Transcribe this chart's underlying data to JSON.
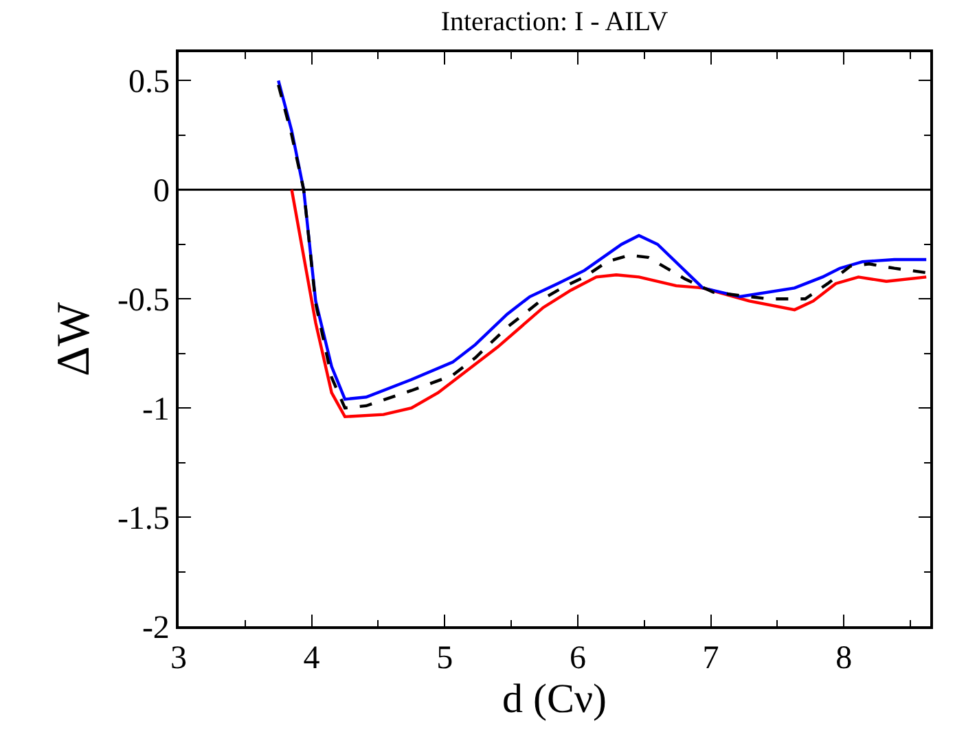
{
  "chart_data": {
    "type": "line",
    "title": "Interaction: I - AILV",
    "xlabel": "d (Cν)",
    "ylabel": "ΔW",
    "xlim": [
      3,
      8.65
    ],
    "ylim": [
      -2,
      0.63
    ],
    "xticks": [
      3,
      4,
      5,
      6,
      7,
      8
    ],
    "yticks": [
      0.5,
      0,
      -0.5,
      -1,
      -1.5,
      -2
    ],
    "grid": false,
    "ref_lines": [
      {
        "axis": "y",
        "value": 0,
        "color": "#000000"
      }
    ],
    "series": [
      {
        "color": "#ff0000",
        "line_style": "solid",
        "x": [
          3.85,
          4.03,
          4.15,
          4.25,
          4.54,
          4.75,
          4.95,
          5.4,
          5.74,
          5.95,
          6.14,
          6.29,
          6.46,
          6.74,
          6.94,
          7.29,
          7.63,
          7.77,
          7.94,
          8.11,
          8.32,
          8.62
        ],
        "values": [
          0.0,
          -0.61,
          -0.93,
          -1.04,
          -1.03,
          -1.0,
          -0.93,
          -0.72,
          -0.54,
          -0.46,
          -0.4,
          -0.39,
          -0.4,
          -0.44,
          -0.45,
          -0.51,
          -0.55,
          -0.51,
          -0.43,
          -0.4,
          -0.42,
          -0.4
        ]
      },
      {
        "color": "#0000ff",
        "line_style": "solid",
        "x": [
          3.75,
          3.85,
          3.94,
          4.03,
          4.15,
          4.25,
          4.41,
          4.75,
          5.06,
          5.23,
          5.47,
          5.64,
          5.85,
          6.05,
          6.33,
          6.46,
          6.6,
          6.94,
          7.22,
          7.63,
          7.84,
          7.97,
          8.14,
          8.38,
          8.62
        ],
        "values": [
          0.5,
          0.27,
          0.0,
          -0.51,
          -0.81,
          -0.96,
          -0.95,
          -0.87,
          -0.79,
          -0.71,
          -0.57,
          -0.49,
          -0.43,
          -0.37,
          -0.25,
          -0.21,
          -0.25,
          -0.45,
          -0.49,
          -0.45,
          -0.4,
          -0.36,
          -0.33,
          -0.32,
          -0.32
        ]
      },
      {
        "color": "#000000",
        "line_style": "dashed",
        "x": [
          3.75,
          3.85,
          3.94,
          4.03,
          4.15,
          4.25,
          4.41,
          4.75,
          5.06,
          5.23,
          5.47,
          5.74,
          5.88,
          6.05,
          6.22,
          6.39,
          6.53,
          6.81,
          7.02,
          7.43,
          7.71,
          7.88,
          8.05,
          8.19,
          8.38,
          8.62
        ],
        "values": [
          0.48,
          0.25,
          0.0,
          -0.52,
          -0.86,
          -1.0,
          -0.99,
          -0.92,
          -0.85,
          -0.77,
          -0.63,
          -0.5,
          -0.45,
          -0.4,
          -0.33,
          -0.3,
          -0.31,
          -0.41,
          -0.47,
          -0.5,
          -0.5,
          -0.43,
          -0.35,
          -0.34,
          -0.36,
          -0.38
        ]
      }
    ]
  }
}
